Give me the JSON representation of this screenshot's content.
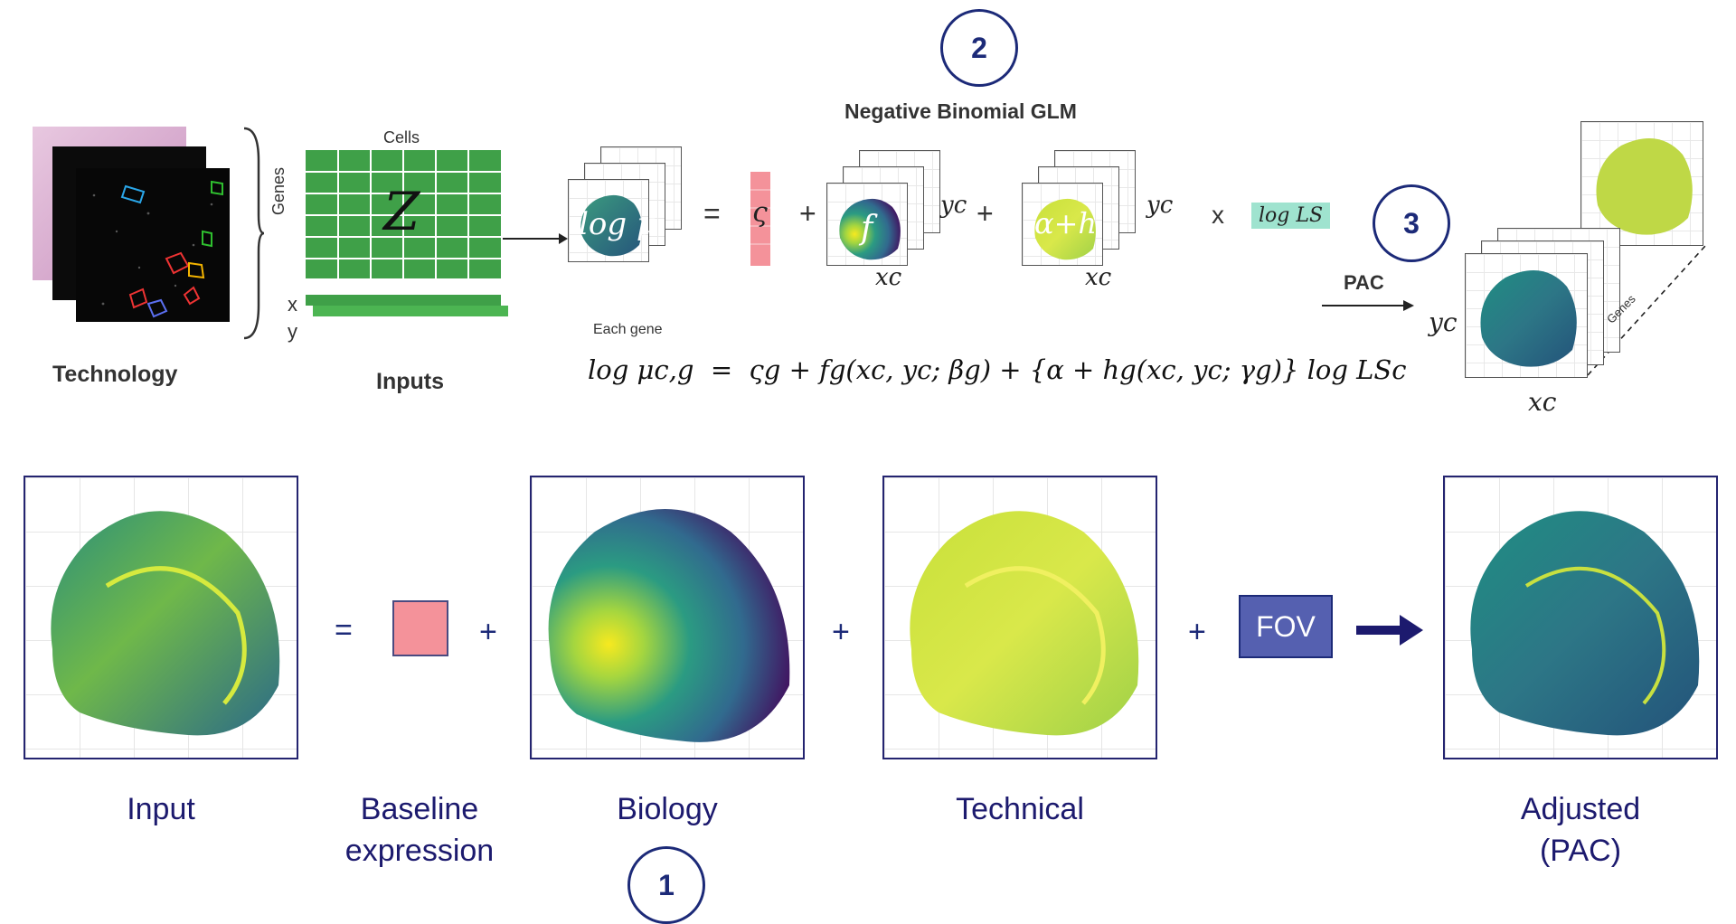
{
  "top": {
    "technology_label": "Technology",
    "inputs_label": "Inputs",
    "cells_label": "Cells",
    "genes_label": "Genes",
    "matrix_symbol": "Z",
    "x_label": "x",
    "y_label": "y",
    "glm_title": "Negative Binomial GLM",
    "step2": "2",
    "step3": "3",
    "log_mu": "log μ",
    "equals": "=",
    "sigma": "ς",
    "plus": "+",
    "f_label": "f",
    "alpha_h_label": "α+h",
    "yc": "yc",
    "xc": "xc",
    "times": "x",
    "log_ls": "log LS",
    "each_gene": "Each gene",
    "pac_label": "PAC",
    "genes_axis": "Genes",
    "equation": "log μc,g  =  ςg + fg(xc, yc; βg) + {α + hg(xc, yc; γg)} log LSc"
  },
  "bottom": {
    "input_label": "Input",
    "baseline_label": "Baseline expression",
    "biology_label": "Biology",
    "technical_label": "Technical",
    "adjusted_label_line1": "Adjusted",
    "adjusted_label_line2": "(PAC)",
    "fov_label": "FOV",
    "equals": "=",
    "plus": "+",
    "step1": "1"
  },
  "colors": {
    "navy": "#1c2a78",
    "matrix_green": "#3fa048",
    "baseline_pink": "#f4929a",
    "fov_blue": "#5560b0",
    "logls_teal": "#9fe3cf"
  }
}
